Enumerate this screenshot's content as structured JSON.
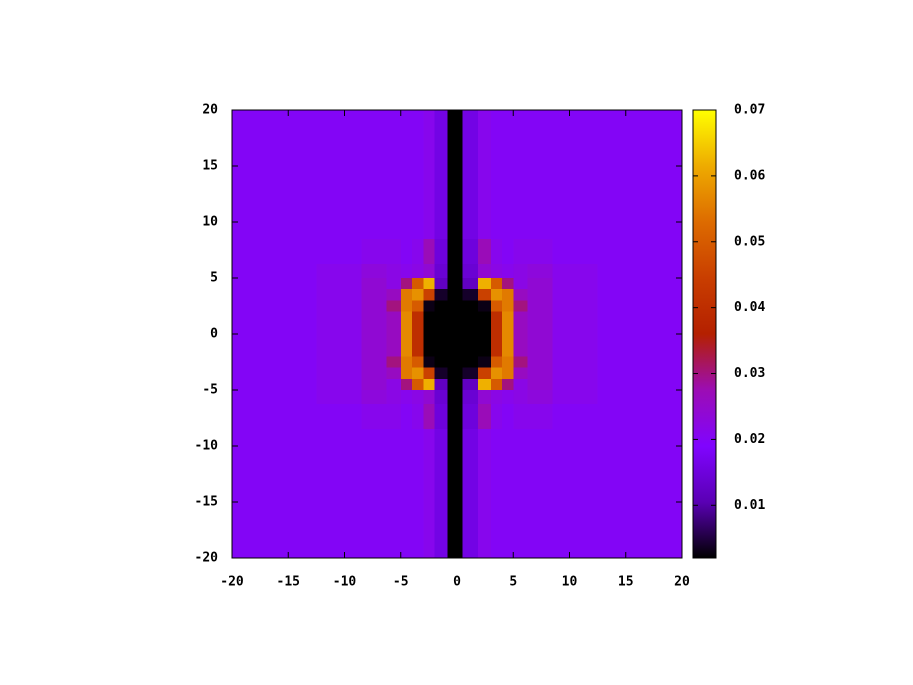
{
  "chart_data": {
    "type": "heatmap",
    "x": [
      -20,
      -15,
      -10,
      -7,
      -5.5,
      -4.5,
      -3.5,
      -2.5,
      -1.5,
      -0.2,
      1.2,
      2.5,
      3.5,
      4.5,
      5.5,
      7,
      10,
      15,
      20
    ],
    "y": [
      20,
      15,
      10,
      7,
      5.5,
      4.5,
      3.5,
      2.5,
      1.5,
      0,
      -1.5,
      -2.5,
      -3.5,
      -4.5,
      -5.5,
      -7,
      -10,
      -15,
      -20
    ],
    "z": [
      [
        0.02,
        0.02,
        0.02,
        0.02,
        0.02,
        0.02,
        0.02,
        0.021,
        0.016,
        0.002,
        0.016,
        0.021,
        0.02,
        0.02,
        0.02,
        0.02,
        0.02,
        0.02,
        0.02
      ],
      [
        0.02,
        0.02,
        0.02,
        0.02,
        0.02,
        0.02,
        0.02,
        0.021,
        0.016,
        0.002,
        0.016,
        0.021,
        0.02,
        0.02,
        0.02,
        0.02,
        0.02,
        0.02,
        0.02
      ],
      [
        0.02,
        0.02,
        0.02,
        0.02,
        0.02,
        0.02,
        0.02,
        0.021,
        0.016,
        0.002,
        0.016,
        0.021,
        0.02,
        0.02,
        0.02,
        0.02,
        0.02,
        0.02,
        0.02
      ],
      [
        0.02,
        0.02,
        0.02,
        0.021,
        0.021,
        0.02,
        0.021,
        0.027,
        0.015,
        0.002,
        0.015,
        0.027,
        0.021,
        0.02,
        0.021,
        0.021,
        0.02,
        0.02,
        0.02
      ],
      [
        0.02,
        0.02,
        0.021,
        0.023,
        0.022,
        0.021,
        0.022,
        0.024,
        0.014,
        0.002,
        0.014,
        0.024,
        0.022,
        0.021,
        0.022,
        0.023,
        0.021,
        0.02,
        0.02
      ],
      [
        0.02,
        0.02,
        0.021,
        0.024,
        0.022,
        0.03,
        0.05,
        0.062,
        0.012,
        0.002,
        0.012,
        0.062,
        0.05,
        0.03,
        0.022,
        0.024,
        0.021,
        0.02,
        0.02
      ],
      [
        0.02,
        0.02,
        0.021,
        0.024,
        0.026,
        0.055,
        0.058,
        0.045,
        0.004,
        0.002,
        0.004,
        0.045,
        0.058,
        0.055,
        0.026,
        0.024,
        0.021,
        0.02,
        0.02
      ],
      [
        0.02,
        0.02,
        0.021,
        0.024,
        0.03,
        0.055,
        0.05,
        0.003,
        0.002,
        0.002,
        0.002,
        0.003,
        0.05,
        0.055,
        0.03,
        0.024,
        0.021,
        0.02,
        0.02
      ],
      [
        0.02,
        0.02,
        0.021,
        0.024,
        0.026,
        0.057,
        0.04,
        0.002,
        0.002,
        0.002,
        0.002,
        0.002,
        0.04,
        0.057,
        0.026,
        0.024,
        0.021,
        0.02,
        0.02
      ],
      [
        0.02,
        0.02,
        0.021,
        0.024,
        0.026,
        0.057,
        0.04,
        0.002,
        0.002,
        0.002,
        0.002,
        0.002,
        0.04,
        0.057,
        0.026,
        0.024,
        0.021,
        0.02,
        0.02
      ],
      [
        0.02,
        0.02,
        0.021,
        0.024,
        0.026,
        0.057,
        0.04,
        0.002,
        0.002,
        0.002,
        0.002,
        0.002,
        0.04,
        0.057,
        0.026,
        0.024,
        0.021,
        0.02,
        0.02
      ],
      [
        0.02,
        0.02,
        0.021,
        0.024,
        0.03,
        0.055,
        0.05,
        0.003,
        0.002,
        0.002,
        0.002,
        0.003,
        0.05,
        0.055,
        0.03,
        0.024,
        0.021,
        0.02,
        0.02
      ],
      [
        0.02,
        0.02,
        0.021,
        0.024,
        0.026,
        0.055,
        0.058,
        0.045,
        0.004,
        0.002,
        0.004,
        0.045,
        0.058,
        0.055,
        0.026,
        0.024,
        0.021,
        0.02,
        0.02
      ],
      [
        0.02,
        0.02,
        0.021,
        0.024,
        0.022,
        0.03,
        0.05,
        0.062,
        0.012,
        0.002,
        0.012,
        0.062,
        0.05,
        0.03,
        0.022,
        0.024,
        0.021,
        0.02,
        0.02
      ],
      [
        0.02,
        0.02,
        0.021,
        0.023,
        0.022,
        0.021,
        0.022,
        0.024,
        0.014,
        0.002,
        0.014,
        0.024,
        0.022,
        0.021,
        0.022,
        0.023,
        0.021,
        0.02,
        0.02
      ],
      [
        0.02,
        0.02,
        0.02,
        0.021,
        0.021,
        0.02,
        0.021,
        0.027,
        0.015,
        0.002,
        0.015,
        0.027,
        0.021,
        0.02,
        0.021,
        0.021,
        0.02,
        0.02,
        0.02
      ],
      [
        0.02,
        0.02,
        0.02,
        0.02,
        0.02,
        0.02,
        0.02,
        0.021,
        0.016,
        0.002,
        0.016,
        0.021,
        0.02,
        0.02,
        0.02,
        0.02,
        0.02,
        0.02,
        0.02
      ],
      [
        0.02,
        0.02,
        0.02,
        0.02,
        0.02,
        0.02,
        0.02,
        0.021,
        0.016,
        0.002,
        0.016,
        0.021,
        0.02,
        0.02,
        0.02,
        0.02,
        0.02,
        0.02,
        0.02
      ],
      [
        0.02,
        0.02,
        0.02,
        0.02,
        0.02,
        0.02,
        0.02,
        0.021,
        0.016,
        0.002,
        0.016,
        0.021,
        0.02,
        0.02,
        0.02,
        0.02,
        0.02,
        0.02,
        0.02
      ]
    ],
    "xlim": [
      -20,
      20
    ],
    "xticks": [
      -20,
      -15,
      -10,
      -5,
      0,
      5,
      10,
      15,
      20
    ],
    "ylim": [
      -20,
      20
    ],
    "yticks": [
      -20,
      -15,
      -10,
      -5,
      0,
      5,
      10,
      15,
      20
    ],
    "cblim": [
      0.002,
      0.07
    ],
    "cbticks": [
      0.01,
      0.02,
      0.03,
      0.04,
      0.05,
      0.06,
      0.07
    ],
    "colorscale": [
      "#000000",
      "#5a00b4",
      "#8004ff",
      "#9c0db4",
      "#b42000",
      "#c93e00",
      "#dd6b00",
      "#eeab00",
      "#ffff00"
    ]
  }
}
